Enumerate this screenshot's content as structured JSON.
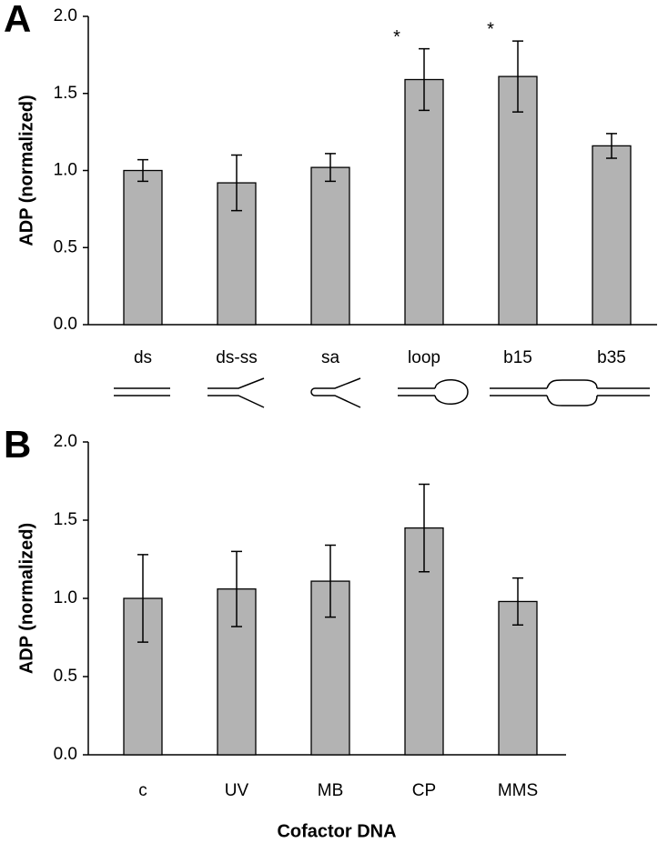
{
  "chart_data": [
    {
      "type": "bar",
      "panel": "A",
      "ylabel": "ADP (normalized)",
      "categories": [
        "ds",
        "ds-ss",
        "sa",
        "loop",
        "b15",
        "b35"
      ],
      "values": [
        1.0,
        0.92,
        1.02,
        1.59,
        1.61,
        1.16
      ],
      "errors": [
        0.07,
        0.18,
        0.09,
        0.2,
        0.23,
        0.08
      ],
      "color": "#b3b3b3",
      "annotations": [
        {
          "text": "*",
          "category": "loop"
        },
        {
          "text": "*",
          "category": "b15"
        }
      ],
      "ylim": [
        0,
        2.0
      ],
      "yticks": [
        {
          "value": 0,
          "label": "0.0"
        },
        {
          "value": 0.5,
          "label": "0.5"
        },
        {
          "value": 1.0,
          "label": "1.0"
        },
        {
          "value": 1.5,
          "label": "1.5"
        },
        {
          "value": 2.0,
          "label": "2.0"
        }
      ]
    },
    {
      "type": "bar",
      "panel": "B",
      "ylabel": "ADP (normalized)",
      "xlabel": "Cofactor DNA",
      "categories": [
        "c",
        "UV",
        "MB",
        "CP",
        "MMS"
      ],
      "values": [
        1.0,
        1.06,
        1.11,
        1.45,
        0.98
      ],
      "errors": [
        0.28,
        0.24,
        0.23,
        0.28,
        0.15
      ],
      "color": "#b3b3b3",
      "ylim": [
        0,
        2.0
      ],
      "yticks": [
        {
          "value": 0,
          "label": "0.0"
        },
        {
          "value": 0.5,
          "label": "0.5"
        },
        {
          "value": 1.0,
          "label": "1.0"
        },
        {
          "value": 1.5,
          "label": "1.5"
        },
        {
          "value": 2.0,
          "label": "2.0"
        }
      ]
    }
  ]
}
